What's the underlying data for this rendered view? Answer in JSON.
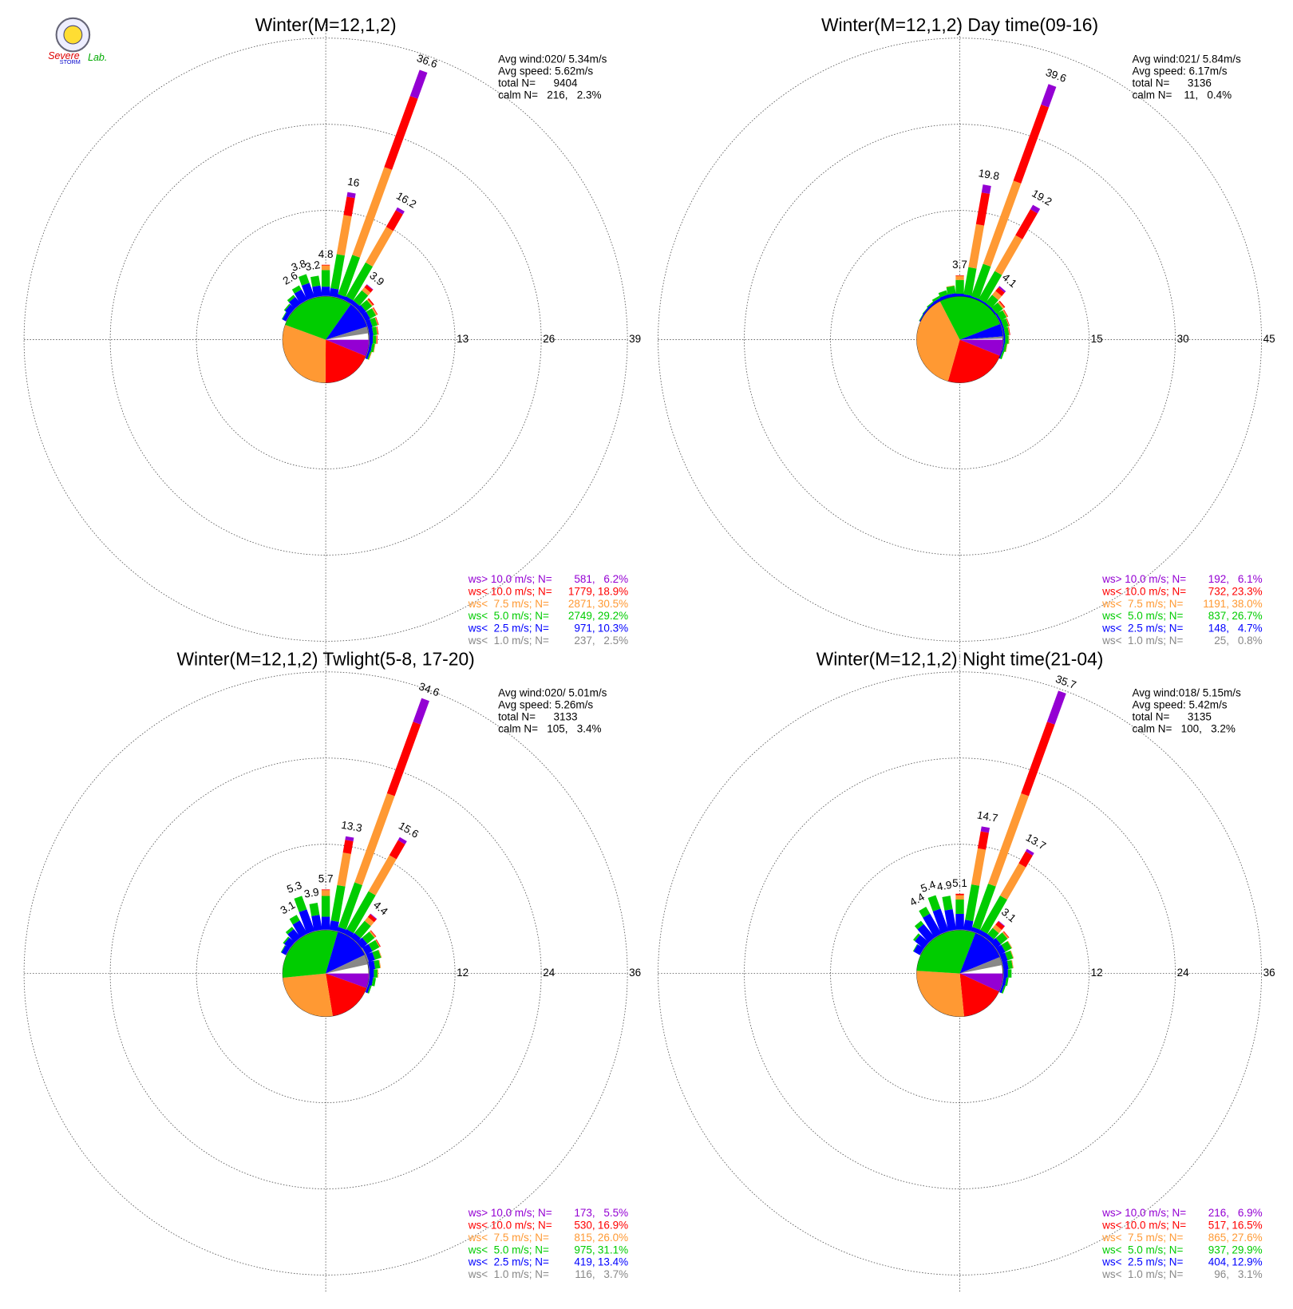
{
  "logo": [
    "Severe",
    "STORM",
    "Lab."
  ],
  "chart_data": [
    {
      "type": "windrose",
      "title": "Winter(M=12,1,2)",
      "stats": [
        "Avg wind:020/ 5.34m/s",
        "Avg speed: 5.62m/s",
        "total N=      9404",
        "calm N=   216,   2.3%"
      ],
      "rlim": [
        0,
        39
      ],
      "rticks": [
        13,
        26,
        39
      ],
      "directions": [
        300,
        310,
        320,
        330,
        340,
        350,
        0,
        10,
        20,
        30,
        40,
        50,
        60,
        70,
        80,
        90,
        100,
        110
      ],
      "bar_labels": [
        null,
        null,
        null,
        2.6,
        3.8,
        3.2,
        4.8,
        16.0,
        36.6,
        16.2,
        3.9,
        null,
        null,
        null,
        null,
        null,
        null,
        null
      ],
      "series": [
        {
          "name": "ws> 10.0 m/s; N=",
          "color": "#9400d3",
          "count": 581,
          "count_label": "581,",
          "percent": 6.2,
          "percent_label": "6.2%",
          "values": [
            0,
            0,
            0,
            0,
            0,
            0,
            0,
            0.7,
            4.2,
            0.5,
            0.1,
            0,
            0,
            0,
            0,
            0,
            0,
            0
          ]
        },
        {
          "name": "ws< 10.0 m/s; N=",
          "color": "#ff0000",
          "count": 1779,
          "count_label": "1779,",
          "percent": 18.9,
          "percent_label": "18.9%",
          "values": [
            0,
            0,
            0,
            0,
            0,
            0,
            0.1,
            2.8,
            11.4,
            2.9,
            0.5,
            0.2,
            0.1,
            0.1,
            0.1,
            0.1,
            0,
            0
          ]
        },
        {
          "name": "ws<  7.5 m/s; N=",
          "color": "#ff9933",
          "count": 2871,
          "count_label": "2871,",
          "percent": 30.5,
          "percent_label": "30.5%",
          "values": [
            0,
            0,
            0,
            0,
            0,
            0,
            0.7,
            6.0,
            14.1,
            6.2,
            0.6,
            0.2,
            0.2,
            0.1,
            0.1,
            0.1,
            0.1,
            0.1
          ]
        },
        {
          "name": "ws<  5.0 m/s; N=",
          "color": "#00cc00",
          "count": 2749,
          "count_label": "2749,",
          "percent": 29.2,
          "percent_label": "29.2%",
          "values": [
            0.1,
            0.2,
            0.4,
            0.7,
            1.4,
            1.5,
            2.5,
            5.2,
            6.3,
            5.9,
            2.0,
            1.2,
            1.0,
            0.8,
            0.6,
            0.5,
            0.4,
            0.2
          ]
        },
        {
          "name": "ws<  2.5 m/s; N=",
          "color": "#0000ff",
          "count": 971,
          "count_label": "971,",
          "percent": 10.3,
          "percent_label": "10.3%",
          "values": [
            0.6,
            0.9,
            1.3,
            1.8,
            2.3,
            1.6,
            1.4,
            1.2,
            0.5,
            0.6,
            0.6,
            0.8,
            0.8,
            0.7,
            0.6,
            0.5,
            0.4,
            0.3
          ]
        },
        {
          "name": "ws<  1.0 m/s; N=",
          "color": "#888888",
          "count": 237,
          "count_label": "237,",
          "percent": 2.5,
          "percent_label": "2.5%",
          "values": [
            0.1,
            0.1,
            0.1,
            0.1,
            0.1,
            0.1,
            0.1,
            0.1,
            0.1,
            0.1,
            0.1,
            0.1,
            0.1,
            0.1,
            0.1,
            0.1,
            0.1,
            0.1
          ]
        }
      ]
    },
    {
      "type": "windrose",
      "title": "Winter(M=12,1,2) Day time(09-16)",
      "stats": [
        "Avg wind:021/ 5.84m/s",
        "Avg speed: 6.17m/s",
        "total N=      3136",
        "calm N=    11,   0.4%"
      ],
      "rlim": [
        0,
        45
      ],
      "rticks": [
        15,
        30,
        45
      ],
      "directions": [
        300,
        310,
        320,
        330,
        340,
        350,
        0,
        10,
        20,
        30,
        40,
        50,
        60,
        70,
        80,
        90,
        100,
        110
      ],
      "bar_labels": [
        null,
        null,
        null,
        null,
        null,
        null,
        3.7,
        19.8,
        39.6,
        19.2,
        4.1,
        null,
        null,
        null,
        null,
        null,
        null,
        null
      ],
      "series": [
        {
          "name": "ws> 10.0 m/s; N=",
          "color": "#9400d3",
          "count": 192,
          "count_label": "192,",
          "percent": 6.1,
          "percent_label": "6.1%",
          "values": [
            0,
            0,
            0,
            0,
            0,
            0,
            0,
            1.4,
            3.8,
            0.9,
            0.3,
            0,
            0,
            0,
            0,
            0,
            0,
            0
          ]
        },
        {
          "name": "ws< 10.0 m/s; N=",
          "color": "#ff0000",
          "count": 732,
          "count_label": "732,",
          "percent": 23.3,
          "percent_label": "23.3%",
          "values": [
            0,
            0,
            0,
            0,
            0,
            0,
            0.1,
            5.6,
            14.1,
            5.2,
            0.8,
            0.2,
            0.1,
            0.1,
            0.1,
            0,
            0,
            0
          ]
        },
        {
          "name": "ws<  7.5 m/s; N=",
          "color": "#ff9933",
          "count": 1191,
          "count_label": "1191,",
          "percent": 38,
          "percent_label": "38.0%",
          "values": [
            0,
            0,
            0,
            0,
            0,
            0.1,
            0.7,
            7.6,
            15.4,
            7.2,
            0.9,
            0.3,
            0.2,
            0.1,
            0.1,
            0.1,
            0.1,
            0
          ]
        },
        {
          "name": "ws<  5.0 m/s; N=",
          "color": "#00cc00",
          "count": 837,
          "count_label": "837,",
          "percent": 26.7,
          "percent_label": "26.7%",
          "values": [
            0.1,
            0.1,
            0.2,
            0.4,
            0.8,
            1.3,
            2.4,
            4.8,
            6.0,
            5.6,
            1.8,
            1.4,
            1.1,
            0.9,
            0.7,
            0.6,
            0.4,
            0.3
          ]
        },
        {
          "name": "ws<  2.5 m/s; N=",
          "color": "#0000ff",
          "count": 148,
          "count_label": "148,",
          "percent": 4.7,
          "percent_label": "4.7%",
          "values": [
            0.2,
            0.3,
            0.4,
            0.5,
            0.6,
            0.6,
            0.5,
            0.4,
            0.3,
            0.3,
            0.3,
            0.3,
            0.3,
            0.3,
            0.3,
            0.3,
            0.2,
            0.2
          ]
        },
        {
          "name": "ws<  1.0 m/s; N=",
          "color": "#888888",
          "count": 25,
          "count_label": "25,",
          "percent": 0.8,
          "percent_label": "0.8%",
          "values": [
            0,
            0,
            0,
            0,
            0,
            0,
            0,
            0,
            0,
            0,
            0,
            0,
            0.1,
            0.1,
            0.1,
            0.1,
            0.1,
            0
          ]
        }
      ]
    },
    {
      "type": "windrose",
      "title": "Winter(M=12,1,2) Twlight(5-8, 17-20)",
      "stats": [
        "Avg wind:020/ 5.01m/s",
        "Avg speed: 5.26m/s",
        "total N=      3133",
        "calm N=   105,   3.4%"
      ],
      "rlim": [
        0,
        36
      ],
      "rticks": [
        12,
        24,
        36
      ],
      "directions": [
        300,
        310,
        320,
        330,
        340,
        350,
        0,
        10,
        20,
        30,
        40,
        50,
        60,
        70,
        80,
        90,
        100,
        110
      ],
      "bar_labels": [
        null,
        null,
        null,
        3.1,
        5.3,
        3.9,
        5.7,
        13.3,
        34.6,
        15.6,
        4.4,
        null,
        null,
        null,
        null,
        null,
        null,
        null
      ],
      "series": [
        {
          "name": "ws> 10.0 m/s; N=",
          "color": "#9400d3",
          "count": 173,
          "count_label": "173,",
          "percent": 5.5,
          "percent_label": "5.5%",
          "values": [
            0,
            0,
            0,
            0,
            0,
            0,
            0,
            0.5,
            3.5,
            0.5,
            0.1,
            0,
            0,
            0,
            0,
            0,
            0,
            0
          ]
        },
        {
          "name": "ws< 10.0 m/s; N=",
          "color": "#ff0000",
          "count": 530,
          "count_label": "530,",
          "percent": 16.9,
          "percent_label": "16.9%",
          "values": [
            0,
            0,
            0,
            0,
            0,
            0,
            0.1,
            1.8,
            10.6,
            2.4,
            0.5,
            0.1,
            0.1,
            0,
            0,
            0,
            0,
            0
          ]
        },
        {
          "name": "ws<  7.5 m/s; N=",
          "color": "#ff9933",
          "count": 815,
          "count_label": "815,",
          "percent": 26,
          "percent_label": "26.0%",
          "values": [
            0,
            0,
            0,
            0,
            0,
            0,
            0.8,
            4.6,
            13.2,
            5.8,
            0.7,
            0.2,
            0.1,
            0.1,
            0.1,
            0.1,
            0,
            0
          ]
        },
        {
          "name": "ws<  5.0 m/s; N=",
          "color": "#00cc00",
          "count": 975,
          "count_label": "975,",
          "percent": 31.1,
          "percent_label": "31.1%",
          "values": [
            0.1,
            0.2,
            0.4,
            0.9,
            2.0,
            1.7,
            2.9,
            5.0,
            6.6,
            6.1,
            2.2,
            1.3,
            1.1,
            0.9,
            0.7,
            0.5,
            0.4,
            0.2
          ]
        },
        {
          "name": "ws<  2.5 m/s; N=",
          "color": "#0000ff",
          "count": 419,
          "count_label": "419,",
          "percent": 13.4,
          "percent_label": "13.4%",
          "values": [
            0.7,
            1.0,
            1.5,
            2.1,
            3.2,
            2.1,
            1.8,
            1.3,
            0.6,
            0.7,
            0.8,
            1.0,
            1.0,
            0.9,
            0.8,
            0.6,
            0.5,
            0.3
          ]
        },
        {
          "name": "ws<  1.0 m/s; N=",
          "color": "#888888",
          "count": 116,
          "count_label": "116,",
          "percent": 3.7,
          "percent_label": "3.7%",
          "values": [
            0.1,
            0.1,
            0.1,
            0.1,
            0.1,
            0.1,
            0.1,
            0.1,
            0.1,
            0.1,
            0.1,
            0.1,
            0.2,
            0.2,
            0.1,
            0.1,
            0.1,
            0.1
          ]
        }
      ]
    },
    {
      "type": "windrose",
      "title": "Winter(M=12,1,2) Night time(21-04)",
      "stats": [
        "Avg wind:018/ 5.15m/s",
        "Avg speed: 5.42m/s",
        "total N=      3135",
        "calm N=   100,   3.2%"
      ],
      "rlim": [
        0,
        36
      ],
      "rticks": [
        12,
        24,
        36
      ],
      "directions": [
        300,
        310,
        320,
        330,
        340,
        350,
        0,
        10,
        20,
        30,
        40,
        50,
        60,
        70,
        80,
        90,
        100,
        110
      ],
      "bar_labels": [
        null,
        null,
        null,
        4.4,
        5.4,
        4.9,
        5.1,
        14.7,
        35.7,
        13.7,
        3.1,
        null,
        null,
        null,
        null,
        null,
        null,
        null
      ],
      "series": [
        {
          "name": "ws> 10.0 m/s; N=",
          "color": "#9400d3",
          "count": 216,
          "count_label": "216,",
          "percent": 6.9,
          "percent_label": "6.9%",
          "values": [
            0,
            0,
            0,
            0,
            0,
            0,
            0,
            0.7,
            4.6,
            0.4,
            0.1,
            0,
            0,
            0,
            0,
            0,
            0,
            0
          ]
        },
        {
          "name": "ws< 10.0 m/s; N=",
          "color": "#ff0000",
          "count": 517,
          "count_label": "517,",
          "percent": 16.5,
          "percent_label": "16.5%",
          "values": [
            0,
            0,
            0,
            0,
            0,
            0,
            0.2,
            2.4,
            10.6,
            1.9,
            0.6,
            0.1,
            0,
            0,
            0,
            0,
            0,
            0
          ]
        },
        {
          "name": "ws<  7.5 m/s; N=",
          "color": "#ff9933",
          "count": 865,
          "count_label": "865,",
          "percent": 27.6,
          "percent_label": "27.6%",
          "values": [
            0,
            0,
            0,
            0,
            0,
            0,
            0.6,
            5.1,
            13.4,
            5.2,
            0.6,
            0.2,
            0.1,
            0.1,
            0.1,
            0,
            0,
            0
          ]
        },
        {
          "name": "ws<  5.0 m/s; N=",
          "color": "#00cc00",
          "count": 937,
          "count_label": "937,",
          "percent": 29.9,
          "percent_label": "29.9%",
          "values": [
            0.1,
            0.3,
            0.6,
            1.1,
            2.0,
            1.9,
            2.0,
            5.0,
            6.4,
            5.5,
            1.1,
            1.2,
            1.0,
            0.8,
            0.6,
            0.5,
            0.3,
            0.2
          ]
        },
        {
          "name": "ws<  2.5 m/s; N=",
          "color": "#0000ff",
          "count": 404,
          "count_label": "404,",
          "percent": 12.9,
          "percent_label": "12.9%",
          "values": [
            1.0,
            1.6,
            2.4,
            3.2,
            3.3,
            2.9,
            2.2,
            1.4,
            0.6,
            0.6,
            0.6,
            0.9,
            0.9,
            0.8,
            0.7,
            0.6,
            0.4,
            0.3
          ]
        },
        {
          "name": "ws<  1.0 m/s; N=",
          "color": "#888888",
          "count": 96,
          "count_label": "96,",
          "percent": 3.1,
          "percent_label": "3.1%",
          "values": [
            0.1,
            0.1,
            0.1,
            0.1,
            0.1,
            0.1,
            0.1,
            0.1,
            0.1,
            0.1,
            0.1,
            0.1,
            0.1,
            0.1,
            0.1,
            0.1,
            0.1,
            0.1
          ]
        }
      ]
    }
  ]
}
